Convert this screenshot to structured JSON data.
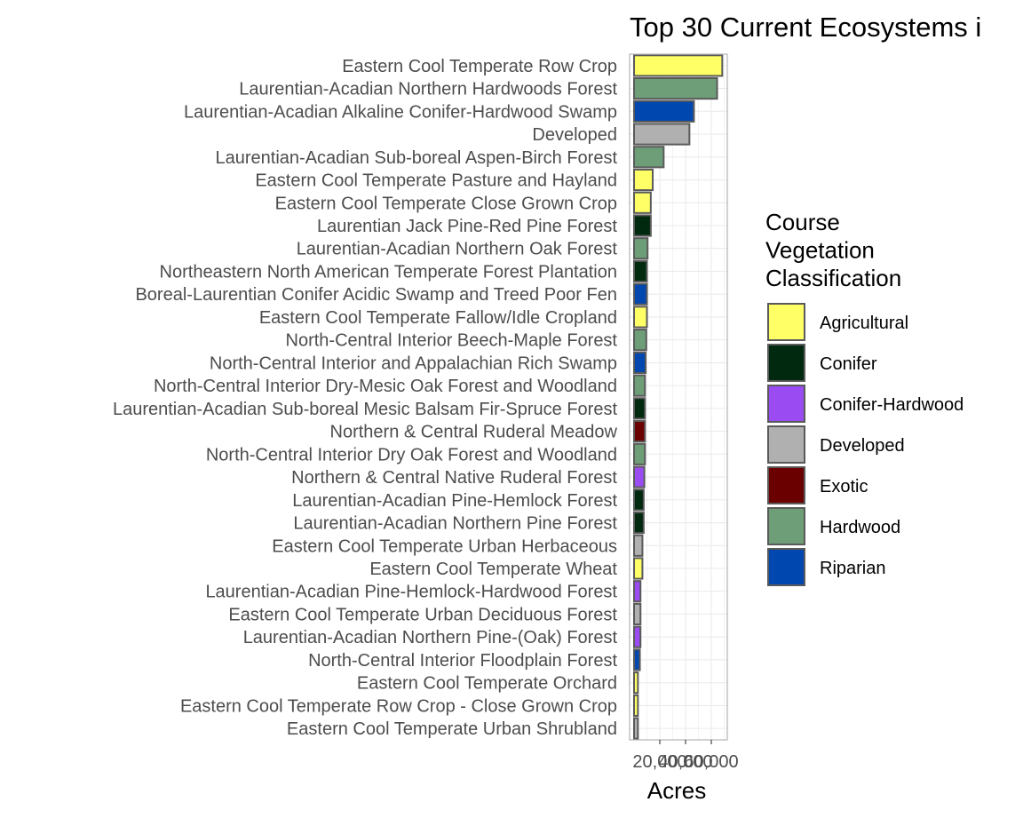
{
  "chart_data": {
    "type": "bar",
    "orientation": "horizontal",
    "title": "Top 30 Current Ecosystems i",
    "xlabel": "Acres",
    "ylabel": "",
    "xlim": [
      0,
      72000
    ],
    "x_ticks": [
      20000,
      40000,
      60000
    ],
    "x_tick_labels": [
      "20,000",
      "40,000",
      "60,000"
    ],
    "grid": true,
    "legend": {
      "title": "Course Vegetation Classification",
      "title_lines": [
        "Course",
        "Vegetation",
        "Classification"
      ],
      "position": "right",
      "items": [
        {
          "label": "Agricultural",
          "color": "#FFFF66"
        },
        {
          "label": "Conifer",
          "color": "#002910"
        },
        {
          "label": "Conifer-Hardwood",
          "color": "#9A4CF2"
        },
        {
          "label": "Developed",
          "color": "#B0B0B0"
        },
        {
          "label": "Exotic",
          "color": "#6B0000"
        },
        {
          "label": "Hardwood",
          "color": "#6E9E78"
        },
        {
          "label": "Riparian",
          "color": "#0047B0"
        }
      ]
    },
    "categories": [
      "Eastern Cool Temperate Row Crop",
      "Laurentian-Acadian Northern Hardwoods Forest",
      "Laurentian-Acadian Alkaline Conifer-Hardwood Swamp",
      "Developed",
      "Laurentian-Acadian Sub-boreal Aspen-Birch Forest",
      "Eastern Cool Temperate Pasture and Hayland",
      "Eastern Cool Temperate Close Grown Crop",
      "Laurentian Jack Pine-Red Pine Forest",
      "Laurentian-Acadian Northern Oak Forest",
      "Northeastern North American Temperate Forest Plantation",
      "Boreal-Laurentian Conifer Acidic Swamp and Treed Poor Fen",
      "Eastern Cool Temperate Fallow/Idle Cropland",
      "North-Central Interior Beech-Maple Forest",
      "North-Central Interior and Appalachian Rich Swamp",
      "North-Central Interior Dry-Mesic Oak Forest and Woodland",
      "Laurentian-Acadian Sub-boreal Mesic Balsam Fir-Spruce Forest",
      "Northern & Central Ruderal Meadow",
      "North-Central Interior Dry Oak Forest and Woodland",
      "Northern & Central Native Ruderal Forest",
      "Laurentian-Acadian Pine-Hemlock Forest",
      "Laurentian-Acadian Northern Pine Forest",
      "Eastern Cool Temperate Urban Herbaceous",
      "Eastern Cool Temperate Wheat",
      "Laurentian-Acadian Pine-Hemlock-Hardwood Forest",
      "Eastern Cool Temperate Urban Deciduous Forest",
      "Laurentian-Acadian Northern Pine-(Oak) Forest",
      "North-Central Interior Floodplain Forest",
      "Eastern Cool Temperate Orchard",
      "Eastern Cool Temperate Row Crop - Close Grown Crop",
      "Eastern Cool Temperate Urban Shrubland"
    ],
    "values": [
      68500,
      64500,
      46500,
      43000,
      23000,
      14500,
      13000,
      13000,
      10500,
      10000,
      10000,
      10000,
      9500,
      9000,
      8500,
      8500,
      8500,
      8500,
      8000,
      7500,
      7500,
      6500,
      6500,
      5000,
      5000,
      5000,
      4500,
      3000,
      3000,
      3000
    ],
    "groups": [
      "Agricultural",
      "Hardwood",
      "Riparian",
      "Developed",
      "Hardwood",
      "Agricultural",
      "Agricultural",
      "Conifer",
      "Hardwood",
      "Conifer",
      "Riparian",
      "Agricultural",
      "Hardwood",
      "Riparian",
      "Hardwood",
      "Conifer",
      "Exotic",
      "Hardwood",
      "Conifer-Hardwood",
      "Conifer",
      "Conifer",
      "Developed",
      "Agricultural",
      "Conifer-Hardwood",
      "Developed",
      "Conifer-Hardwood",
      "Riparian",
      "Agricultural",
      "Agricultural",
      "Developed"
    ]
  }
}
